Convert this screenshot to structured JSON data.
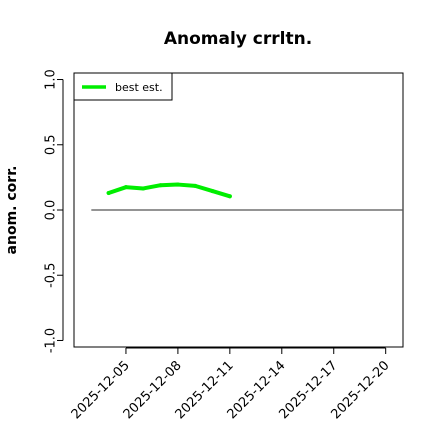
{
  "chart_data": {
    "type": "line",
    "title": "Anomaly crrltn.",
    "xlabel": "",
    "ylabel": "anom. corr.",
    "ylim": [
      -1.05,
      1.05
    ],
    "xlim": [
      "2025-12-02",
      "2025-12-21"
    ],
    "yticks": [
      -1.0,
      -0.5,
      0.0,
      0.5,
      1.0
    ],
    "ytick_labels": [
      "-1.0",
      "-0.5",
      "0.0",
      "0.5",
      "1.0"
    ],
    "xticks": [
      "2025-12-05",
      "2025-12-08",
      "2025-12-11",
      "2025-12-14",
      "2025-12-17",
      "2025-12-20"
    ],
    "grid": false,
    "legend_position": "top-left",
    "series": [
      {
        "name": "best est.",
        "color": "#00ee00",
        "x": [
          "2025-12-04",
          "2025-12-05",
          "2025-12-06",
          "2025-12-07",
          "2025-12-08",
          "2025-12-09",
          "2025-12-10",
          "2025-12-11"
        ],
        "values": [
          0.13,
          0.175,
          0.165,
          0.19,
          0.195,
          0.185,
          0.145,
          0.105
        ]
      }
    ],
    "reference_line": {
      "y": 0.0,
      "x": [
        "2025-12-03",
        "2025-12-21"
      ],
      "color": "#555555"
    }
  }
}
